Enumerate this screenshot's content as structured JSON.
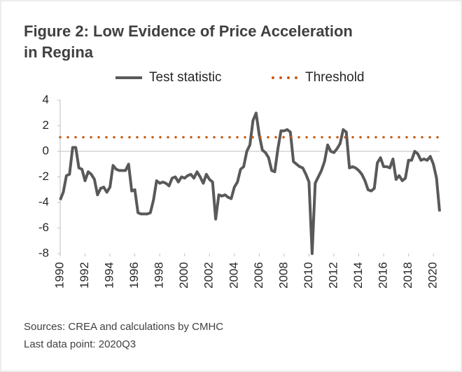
{
  "chart_data": {
    "type": "line",
    "title": "Figure 2: Low Evidence of Price Acceleration",
    "title_line2": "in Regina",
    "sources": "Sources: CREA and calculations by CMHC",
    "last_point": "Last data point: 2020Q3",
    "xlim": [
      1990,
      2020.5
    ],
    "xticks": [
      1990,
      1992,
      1994,
      1996,
      1998,
      2000,
      2002,
      2004,
      2006,
      2008,
      2010,
      2012,
      2014,
      2016,
      2018,
      2020
    ],
    "ylim": [
      -8,
      4
    ],
    "yticks": [
      -8,
      -6,
      -4,
      -2,
      0,
      2,
      4
    ],
    "grid": false,
    "legend": "top",
    "series": [
      {
        "name": "Test statistic",
        "color": "#595959",
        "style": "solid",
        "x": [
          1990,
          1990.25,
          1990.5,
          1990.75,
          1991,
          1991.25,
          1991.5,
          1991.75,
          1992,
          1992.25,
          1992.5,
          1992.75,
          1993,
          1993.25,
          1993.5,
          1993.75,
          1994,
          1994.25,
          1994.5,
          1994.75,
          1995,
          1995.25,
          1995.5,
          1995.75,
          1996,
          1996.25,
          1996.5,
          1996.75,
          1997,
          1997.25,
          1997.5,
          1997.75,
          1998,
          1998.25,
          1998.5,
          1998.75,
          1999,
          1999.25,
          1999.5,
          1999.75,
          2000,
          2000.25,
          2000.5,
          2000.75,
          2001,
          2001.25,
          2001.5,
          2001.75,
          2002,
          2002.25,
          2002.5,
          2002.75,
          2003,
          2003.25,
          2003.5,
          2003.75,
          2004,
          2004.25,
          2004.5,
          2004.75,
          2005,
          2005.25,
          2005.5,
          2005.75,
          2006,
          2006.25,
          2006.5,
          2006.75,
          2007,
          2007.25,
          2007.5,
          2007.75,
          2008,
          2008.25,
          2008.5,
          2008.75,
          2009,
          2009.25,
          2009.5,
          2009.75,
          2010,
          2010.25,
          2010.5,
          2010.75,
          2011,
          2011.25,
          2011.5,
          2011.75,
          2012,
          2012.25,
          2012.5,
          2012.75,
          2013,
          2013.25,
          2013.5,
          2013.75,
          2014,
          2014.25,
          2014.5,
          2014.75,
          2015,
          2015.25,
          2015.5,
          2015.75,
          2016,
          2016.25,
          2016.5,
          2016.75,
          2017,
          2017.25,
          2017.5,
          2017.75,
          2018,
          2018.25,
          2018.5,
          2018.75,
          2019,
          2019.25,
          2019.5,
          2019.75,
          2020,
          2020.25,
          2020.5
        ],
        "values": [
          -3.8,
          -3.2,
          -1.9,
          -1.8,
          0.3,
          0.3,
          -1.3,
          -1.4,
          -2.3,
          -1.6,
          -1.8,
          -2.2,
          -3.4,
          -2.9,
          -2.8,
          -3.2,
          -2.8,
          -1.1,
          -1.4,
          -1.5,
          -1.5,
          -1.5,
          -1.0,
          -3.1,
          -3.0,
          -4.8,
          -4.9,
          -4.9,
          -4.9,
          -4.8,
          -3.8,
          -2.3,
          -2.5,
          -2.4,
          -2.5,
          -2.7,
          -2.1,
          -2.0,
          -2.4,
          -2.0,
          -2.1,
          -1.9,
          -1.8,
          -2.1,
          -1.6,
          -2.0,
          -2.5,
          -1.8,
          -2.2,
          -2.4,
          -5.3,
          -3.4,
          -3.5,
          -3.4,
          -3.6,
          -3.7,
          -2.8,
          -2.4,
          -1.4,
          -1.2,
          0.0,
          0.5,
          2.4,
          3.0,
          1.3,
          0.1,
          -0.1,
          -0.5,
          -1.5,
          -1.6,
          0.2,
          1.6,
          1.6,
          1.7,
          1.5,
          -0.8,
          -1.0,
          -1.2,
          -1.3,
          -1.8,
          -2.4,
          -8.0,
          -2.5,
          -2.0,
          -1.5,
          -0.8,
          0.5,
          0.0,
          -0.1,
          0.2,
          0.6,
          1.7,
          1.5,
          -1.3,
          -1.2,
          -1.3,
          -1.5,
          -1.8,
          -2.3,
          -3.0,
          -3.1,
          -2.9,
          -0.9,
          -0.5,
          -1.2,
          -1.2,
          -1.3,
          -0.6,
          -2.2,
          -1.9,
          -2.3,
          -2.1,
          -0.7,
          -0.7,
          0.0,
          -0.2,
          -0.7,
          -0.6,
          -0.7,
          -0.4,
          -1.0,
          -2.1,
          -4.7
        ]
      },
      {
        "name": "Threshold",
        "color": "#c55a11",
        "style": "dotted",
        "x": [
          1990,
          2020.5
        ],
        "values": [
          1.1,
          1.1
        ]
      }
    ]
  }
}
